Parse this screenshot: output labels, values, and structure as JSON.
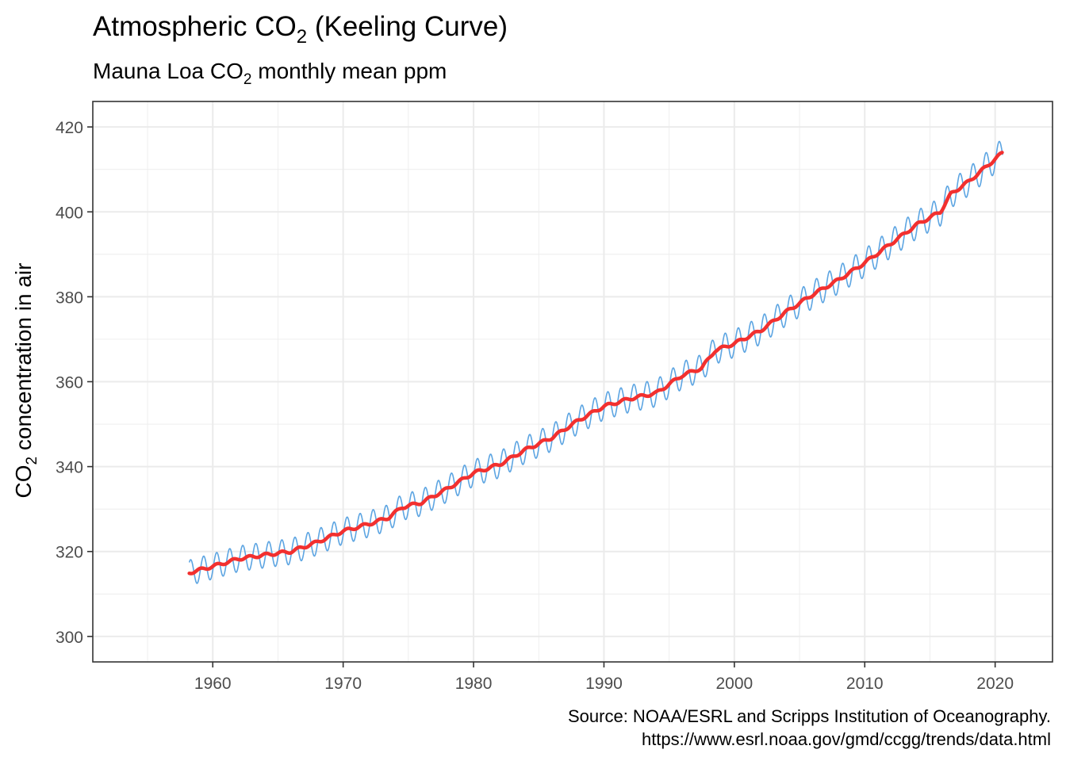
{
  "chart_data": {
    "type": "line",
    "title": {
      "pre": "Atmospheric CO",
      "sub": "2",
      "post": " (Keeling Curve)"
    },
    "subtitle": {
      "pre": "Mauna Loa CO",
      "sub": "2",
      "post": " monthly mean ppm"
    },
    "ylabel": {
      "pre": "CO",
      "sub": "2",
      "post": " concentration in air"
    },
    "caption": [
      "Source: NOAA/ESRL and Scripps Institution of Oceanography.",
      "https://www.esrl.noaa.gov/gmd/ccgg/trends/data.html"
    ],
    "xlim": [
      1950.8,
      2024.4
    ],
    "ylim": [
      294.0,
      426.0
    ],
    "x_ticks": [
      1960,
      1970,
      1980,
      1990,
      2000,
      2010,
      2020
    ],
    "x_tick_labels": [
      "1960",
      "1970",
      "1980",
      "1990",
      "2000",
      "2010",
      "2020"
    ],
    "y_ticks": [
      300,
      320,
      340,
      360,
      380,
      400,
      420
    ],
    "y_tick_labels": [
      "300",
      "320",
      "340",
      "360",
      "380",
      "400",
      "420"
    ],
    "grid": true,
    "colors": {
      "monthly": "#5DA5E2",
      "trend": "#F2302F",
      "grid": "#EBEBEB",
      "panel_border": "#333333"
    },
    "seasonal_amplitude": 3.0,
    "series": [
      {
        "role": "monthly",
        "note": "monthly mean CO2 (seasonal cycle of given amplitude around trend)",
        "x": [
          1958.2,
          1960,
          1962,
          1964,
          1966,
          1968,
          1970,
          1972,
          1973.5,
          1974.5,
          1976,
          1978,
          1980,
          1982,
          1984,
          1986,
          1988,
          1990,
          1992,
          1994,
          1996,
          1997.5,
          1998.5,
          2000,
          2002,
          2004,
          2006,
          2008,
          2010,
          2012,
          2014,
          2015.8,
          2016.6,
          2018,
          2020.6
        ],
        "y": [
          315.0,
          316.5,
          318.3,
          319.2,
          320.0,
          322.2,
          324.8,
          326.5,
          328.0,
          330.4,
          331.5,
          334.8,
          338.5,
          340.5,
          344.0,
          346.8,
          350.8,
          354.2,
          356.0,
          357.3,
          361.5,
          363.2,
          367.3,
          369.0,
          372.0,
          376.5,
          380.5,
          384.0,
          388.0,
          392.5,
          397.0,
          400.0,
          404.2,
          407.2,
          414.0
        ]
      },
      {
        "role": "trend",
        "note": "deseasonalized trend",
        "x": [
          1958.2,
          1960,
          1962,
          1964,
          1966,
          1968,
          1970,
          1972,
          1973.5,
          1974.5,
          1976,
          1978,
          1980,
          1982,
          1984,
          1986,
          1988,
          1990,
          1992,
          1994,
          1996,
          1997.5,
          1998.5,
          2000,
          2002,
          2004,
          2006,
          2008,
          2010,
          2012,
          2014,
          2015.8,
          2016.6,
          2018,
          2020.6
        ],
        "y": [
          315.0,
          316.5,
          318.3,
          319.2,
          320.0,
          322.2,
          324.8,
          326.5,
          328.0,
          330.4,
          331.5,
          334.8,
          338.5,
          340.5,
          344.0,
          346.8,
          350.8,
          354.2,
          356.0,
          357.3,
          361.5,
          363.2,
          367.3,
          369.0,
          372.0,
          376.5,
          380.5,
          384.0,
          388.0,
          392.5,
          397.0,
          400.0,
          404.2,
          407.2,
          414.0
        ]
      }
    ]
  }
}
